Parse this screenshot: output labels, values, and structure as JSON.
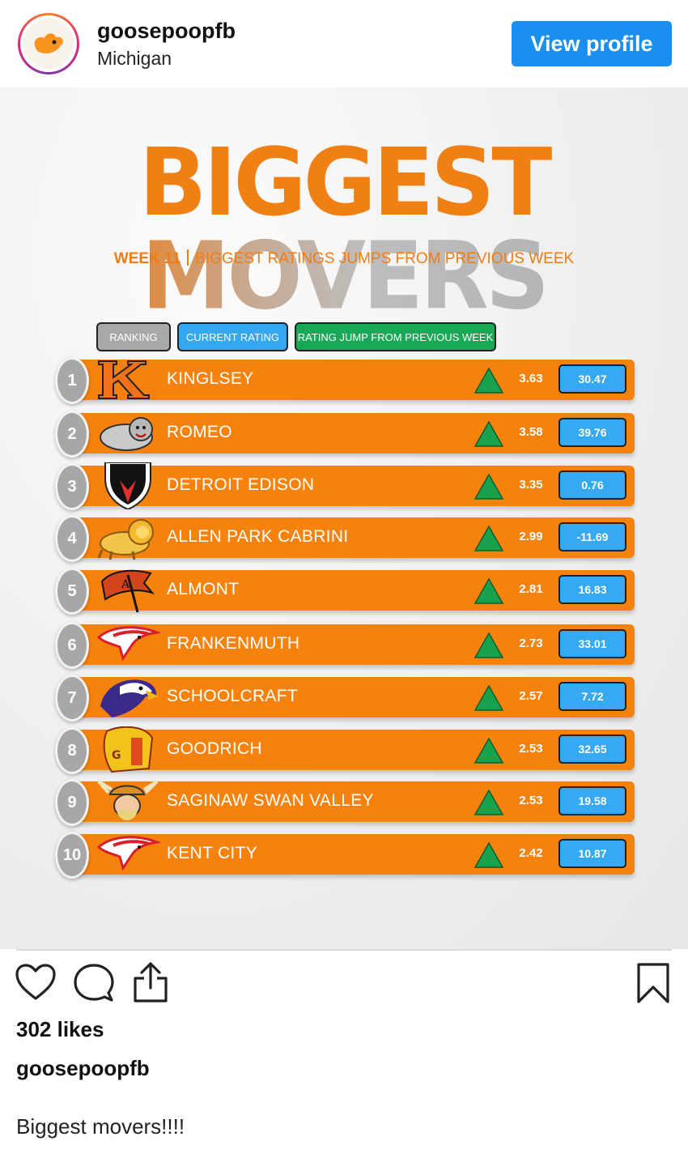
{
  "header": {
    "username": "goosepoopfb",
    "location": "Michigan",
    "view_profile_label": "View profile",
    "avatar_icon": "orange-goose-footprint-icon"
  },
  "graphic": {
    "title_part1": "BIGGEST",
    "title_part2": "MOVERS",
    "subtitle_week": "WEEK 11",
    "subtitle_text": "BIGGEST RATINGS JUMPS FROM PREVIOUS WEEK",
    "legend": {
      "ranking": "RANKING",
      "current": "CURRENT RATING",
      "jump": "RATING JUMP FROM PREVIOUS WEEK"
    },
    "colors": {
      "orange": "#f6820e",
      "blue": "#36a9f3",
      "green": "#18a957",
      "grey": "#a7a7a7"
    },
    "rows": [
      {
        "rank": "1",
        "school": "KINGLSEY",
        "jump": "3.63",
        "rating": "30.47",
        "logo": "letter-k-logo"
      },
      {
        "rank": "2",
        "school": "ROMEO",
        "jump": "3.58",
        "rating": "39.76",
        "logo": "bulldog-logo"
      },
      {
        "rank": "3",
        "school": "DETROIT EDISON",
        "jump": "3.35",
        "rating": "0.76",
        "logo": "shield-logo"
      },
      {
        "rank": "4",
        "school": "ALLEN PARK CABRINI",
        "jump": "2.99",
        "rating": "-11.69",
        "logo": "lion-logo"
      },
      {
        "rank": "5",
        "school": "ALMONT",
        "jump": "2.81",
        "rating": "16.83",
        "logo": "raider-flag-logo"
      },
      {
        "rank": "6",
        "school": "FRANKENMUTH",
        "jump": "2.73",
        "rating": "33.01",
        "logo": "eagle-logo"
      },
      {
        "rank": "7",
        "school": "SCHOOLCRAFT",
        "jump": "2.57",
        "rating": "7.72",
        "logo": "eagle-head-logo"
      },
      {
        "rank": "8",
        "school": "GOODRICH",
        "jump": "2.53",
        "rating": "32.65",
        "logo": "martian-helmet-logo"
      },
      {
        "rank": "9",
        "school": "SAGINAW SWAN VALLEY",
        "jump": "2.53",
        "rating": "19.58",
        "logo": "viking-logo"
      },
      {
        "rank": "10",
        "school": "KENT CITY",
        "jump": "2.42",
        "rating": "10.87",
        "logo": "eagle-logo"
      }
    ]
  },
  "actions": {
    "like_icon": "heart-icon",
    "comment_icon": "comment-icon",
    "share_icon": "share-icon",
    "save_icon": "bookmark-icon"
  },
  "likes_text": "302 likes",
  "caption_user": "goosepoopfb",
  "caption_text": "Biggest movers!!!!"
}
